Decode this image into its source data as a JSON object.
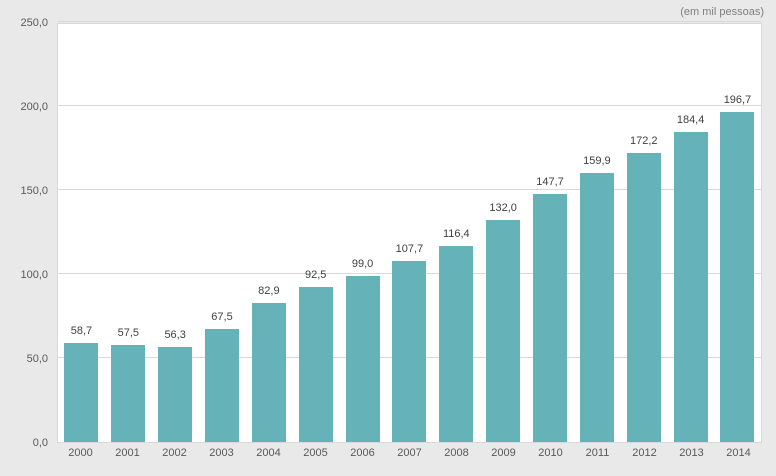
{
  "unit_label": "(em mil pessoas)",
  "colors": {
    "bar": "#65b2b9",
    "canvas_background": "#e9e9e9",
    "plot_background": "#ffffff",
    "gridline": "#d9d9d9",
    "axis_text": "#595959",
    "value_label_text": "#404040",
    "unit_label_text": "#7f7f7f"
  },
  "chart_data": {
    "type": "bar",
    "title": "",
    "xlabel": "",
    "ylabel": "",
    "annotation": "(em mil pessoas)",
    "categories": [
      "2000",
      "2001",
      "2002",
      "2003",
      "2004",
      "2005",
      "2006",
      "2007",
      "2008",
      "2009",
      "2010",
      "2011",
      "2012",
      "2013",
      "2014"
    ],
    "values": [
      58.7,
      57.5,
      56.3,
      67.5,
      82.9,
      92.5,
      99.0,
      107.7,
      116.4,
      132.0,
      147.7,
      159.9,
      172.2,
      184.4,
      196.7
    ],
    "value_labels": [
      "58,7",
      "57,5",
      "56,3",
      "67,5",
      "82,9",
      "92,5",
      "99,0",
      "107,7",
      "116,4",
      "132,0",
      "147,7",
      "159,9",
      "172,2",
      "184,4",
      "196,7"
    ],
    "ylim": [
      0,
      250
    ],
    "ytick_values": [
      0,
      50,
      100,
      150,
      200,
      250
    ],
    "ytick_labels": [
      "0,0",
      "50,0",
      "100,0",
      "150,0",
      "200,0",
      "250,0"
    ],
    "grid": true,
    "legend": false
  }
}
